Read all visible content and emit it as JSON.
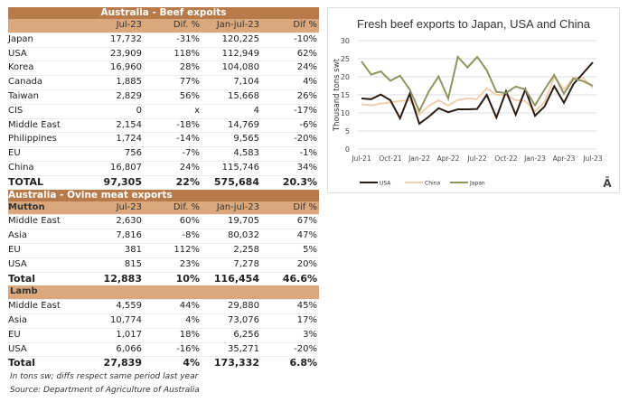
{
  "beef": {
    "title": "Australia - Beef expoits",
    "headers": [
      "",
      "Jul-23",
      "Dif. %",
      "Jan-jul-23",
      "Dif %"
    ],
    "rows": [
      [
        "Japan",
        "17,732",
        "-31%",
        "120,225",
        "-10%"
      ],
      [
        "USA",
        "23,909",
        "118%",
        "112,949",
        "62%"
      ],
      [
        "Korea",
        "16,960",
        "28%",
        "104,080",
        "24%"
      ],
      [
        "Canada",
        "1,885",
        "77%",
        "7,104",
        "4%"
      ],
      [
        "Taiwan",
        "2,829",
        "56%",
        "15,668",
        "26%"
      ],
      [
        "CIS",
        "0",
        "x",
        "4",
        "-17%"
      ],
      [
        "Middle East",
        "2,154",
        "-18%",
        "14,769",
        "-6%"
      ],
      [
        "Philippines",
        "1,724",
        "-14%",
        "9,565",
        "-20%"
      ],
      [
        "EU",
        "756",
        "-7%",
        "4,583",
        "-1%"
      ],
      [
        "China",
        "16,807",
        "24%",
        "115,746",
        "34%"
      ]
    ],
    "total": [
      "TOTAL",
      "97,305",
      "22%",
      "575,684",
      "20.3%"
    ]
  },
  "ovine": {
    "title": "Australia - Ovine meat exports",
    "mutton": {
      "headers": [
        "Mutton",
        "Jul-23",
        "Dif. %",
        "Jan-jul-23",
        "Dif %"
      ],
      "rows": [
        [
          "Middle East",
          "2,630",
          "60%",
          "19,705",
          "67%"
        ],
        [
          "Asia",
          "7,816",
          "-8%",
          "80,032",
          "47%"
        ],
        [
          "EU",
          "381",
          "112%",
          "2,258",
          "5%"
        ],
        [
          "USA",
          "815",
          "23%",
          "7,278",
          "20%"
        ]
      ],
      "total": [
        "Total",
        "12,883",
        "10%",
        "116,454",
        "46.6%"
      ]
    },
    "lamb": {
      "label": "Lamb",
      "rows": [
        [
          "Middle East",
          "4,559",
          "44%",
          "29,880",
          "45%"
        ],
        [
          "Asia",
          "10,774",
          "4%",
          "73,076",
          "17%"
        ],
        [
          "EU",
          "1,017",
          "18%",
          "6,256",
          "3%"
        ],
        [
          "USA",
          "6,066",
          "-16%",
          "35,271",
          "-20%"
        ]
      ],
      "total": [
        "Total",
        "27,839",
        "4%",
        "173,332",
        "6.8%"
      ]
    }
  },
  "notes": [
    "In tons sw; diffs respect same period last year",
    "Source: Department of Agriculture of Australia"
  ],
  "chart_data": {
    "type": "line",
    "title": "Fresh beef exports to Japan, USA and China",
    "ylabel": "Thousand tons swt",
    "xlabel": "",
    "ylim": [
      0,
      30
    ],
    "yticks": [
      0,
      5,
      10,
      15,
      20,
      25,
      30
    ],
    "grid": true,
    "legend": "bottom-left",
    "x": [
      "Jul-21",
      "Aug-21",
      "Sep-21",
      "Oct-21",
      "Nov-21",
      "Dec-21",
      "Jan-22",
      "Feb-22",
      "Mar-22",
      "Apr-22",
      "May-22",
      "Jun-22",
      "Jul-22",
      "Aug-22",
      "Sep-22",
      "Oct-22",
      "Nov-22",
      "Dec-22",
      "Jan-23",
      "Feb-23",
      "Mar-23",
      "Apr-23",
      "May-23",
      "Jun-23",
      "Jul-23"
    ],
    "xtick_labels": [
      "Jul-21",
      "Oct-21",
      "Jan-22",
      "Apr-22",
      "Jul-22",
      "Oct-22",
      "Jan-23",
      "Apr-23",
      "Jul-23"
    ],
    "series": [
      {
        "name": "USA",
        "color": "#2b1d14",
        "values": [
          14,
          13.8,
          15.1,
          13.5,
          8.5,
          15.3,
          7,
          9,
          11.3,
          10.2,
          11,
          11,
          11.1,
          15,
          8.7,
          16,
          9.5,
          16.5,
          9.2,
          11.8,
          17.4,
          12.8,
          18,
          21,
          24
        ]
      },
      {
        "name": "China",
        "color": "#efcfae",
        "values": [
          12.4,
          12.1,
          12.6,
          12.9,
          13.3,
          13.6,
          9.5,
          12,
          13.5,
          12,
          13.6,
          14,
          13.8,
          16.8,
          15,
          15,
          13.5,
          13.3,
          10.5,
          13,
          20,
          16.5,
          19.8,
          19.7,
          17
        ]
      },
      {
        "name": "Japan",
        "color": "#8f9460",
        "values": [
          24.3,
          20.6,
          21.5,
          18.9,
          20.3,
          16.5,
          10.5,
          16,
          20.1,
          14,
          25.5,
          22.6,
          25.5,
          21.8,
          15.8,
          15.5,
          17.3,
          16.5,
          12.1,
          16.5,
          20.5,
          15.3,
          19.5,
          18.8,
          17.5
        ]
      }
    ]
  },
  "logo": "Ā"
}
